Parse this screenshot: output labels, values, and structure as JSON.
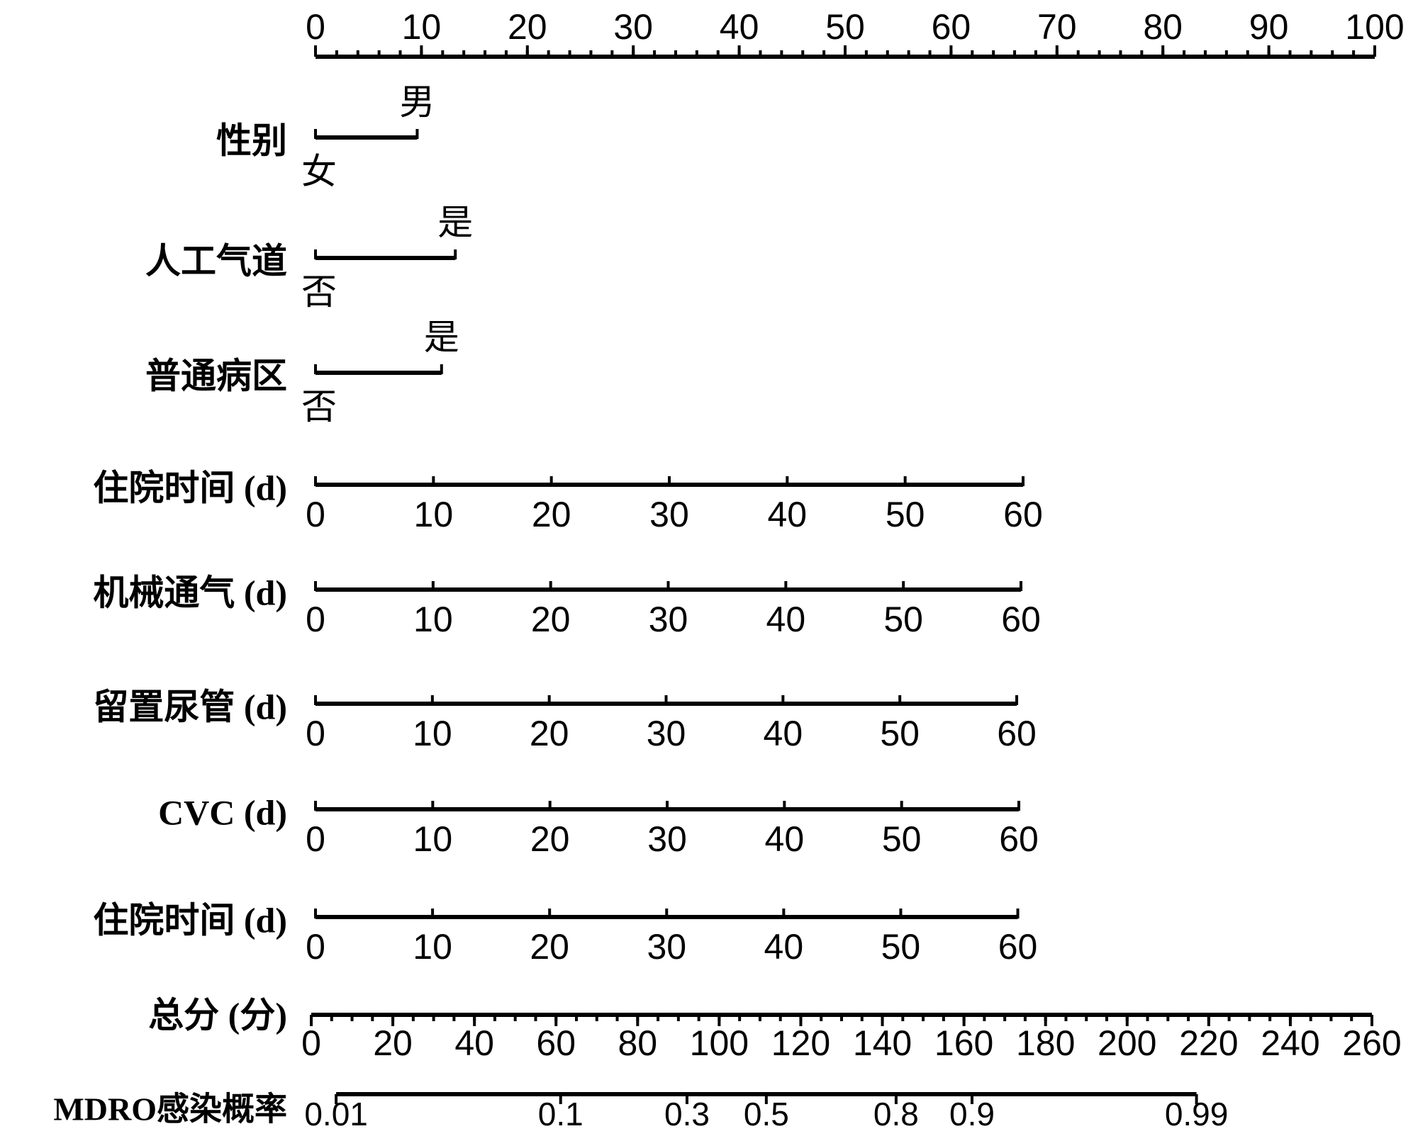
{
  "chart_data": {
    "type": "nomogram",
    "points_axis": {
      "xlim": [
        0,
        100
      ],
      "xticks": [
        0,
        10,
        20,
        30,
        40,
        50,
        60,
        70,
        80,
        90,
        100
      ],
      "minor_tick_step": 2
    },
    "variables": [
      {
        "name": "性别",
        "categories": [
          "女",
          "男"
        ],
        "points": [
          0,
          9.6
        ]
      },
      {
        "name": "人工气道",
        "categories": [
          "否",
          "是"
        ],
        "points": [
          0,
          13.2
        ]
      },
      {
        "name": "普通病区",
        "categories": [
          "否",
          "是"
        ],
        "points": [
          0,
          11.9
        ]
      },
      {
        "name": "住院时间 (d)",
        "xlim": [
          0,
          60
        ],
        "points": [
          0,
          66.8
        ],
        "xticks": [
          0,
          10,
          20,
          30,
          40,
          50,
          60
        ]
      },
      {
        "name": "机械通气 (d)",
        "xlim": [
          0,
          60
        ],
        "points": [
          0,
          66.6
        ],
        "xticks": [
          0,
          10,
          20,
          30,
          40,
          50,
          60
        ]
      },
      {
        "name": "留置尿管 (d)",
        "xlim": [
          0,
          60
        ],
        "points": [
          0,
          66.2
        ],
        "xticks": [
          0,
          10,
          20,
          30,
          40,
          50,
          60
        ]
      },
      {
        "name": "CVC (d)",
        "xlim": [
          0,
          60
        ],
        "points": [
          0,
          66.4
        ],
        "xticks": [
          0,
          10,
          20,
          30,
          40,
          50,
          60
        ]
      },
      {
        "name": "住院时间 (d)",
        "xlim": [
          0,
          60
        ],
        "points": [
          0,
          66.3
        ],
        "xticks": [
          0,
          10,
          20,
          30,
          40,
          50,
          60
        ]
      }
    ],
    "total_axis": {
      "name": "总分 (分)",
      "xlim": [
        0,
        260
      ],
      "xticks": [
        0,
        20,
        40,
        60,
        80,
        100,
        120,
        140,
        160,
        180,
        200,
        220,
        240,
        260
      ],
      "minor_tick_step": 5
    },
    "probability_axis": {
      "name": "MDRO感染概率",
      "scale": "logit",
      "xlim": [
        0.01,
        0.99
      ],
      "total_points": [
        6.1,
        217
      ],
      "xticks": [
        0.01,
        0.1,
        0.3,
        0.5,
        0.8,
        0.9,
        0.99
      ]
    }
  }
}
